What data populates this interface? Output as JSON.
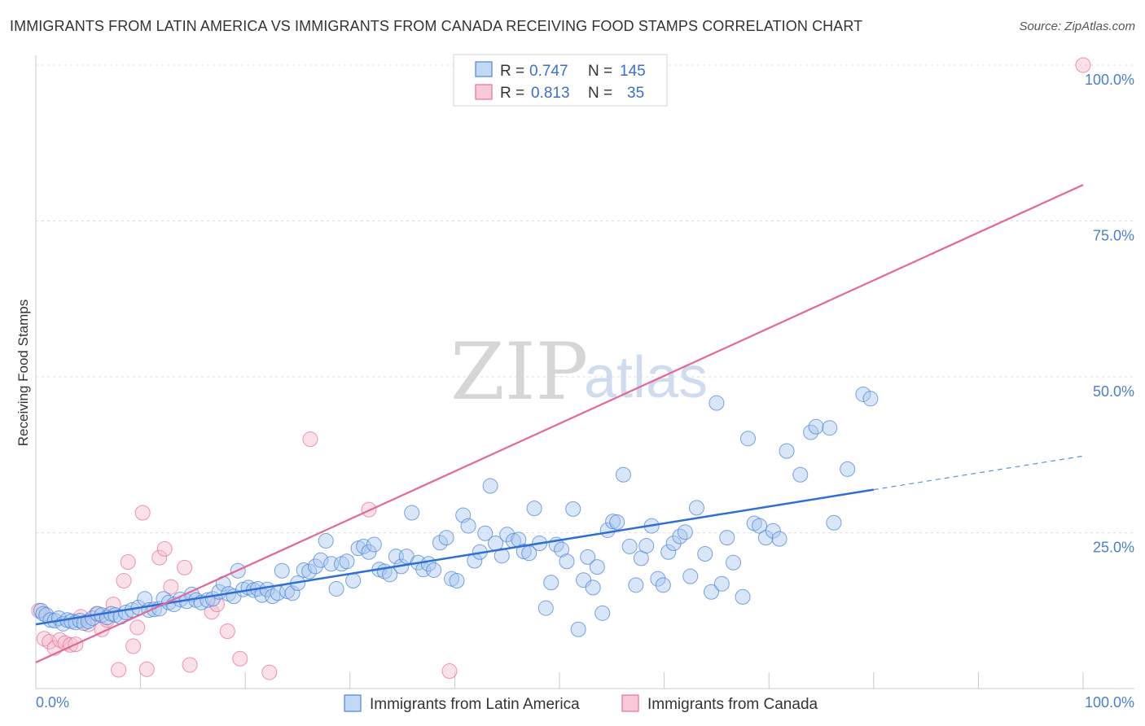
{
  "title": "IMMIGRANTS FROM LATIN AMERICA VS IMMIGRANTS FROM CANADA RECEIVING FOOD STAMPS CORRELATION CHART",
  "source": "Source: ZipAtlas.com",
  "watermark": {
    "zip": "ZIP",
    "atlas": "atlas"
  },
  "colors": {
    "blue": "#4a86d8",
    "blue_fill": "#aac8f0",
    "pink": "#e8709a",
    "pink_fill": "#f5bccf",
    "tick": "#4a7fd0",
    "grid": "#d9d9d9"
  },
  "chart_data": {
    "type": "scatter",
    "title": "IMMIGRANTS FROM LATIN AMERICA VS IMMIGRANTS FROM CANADA RECEIVING FOOD STAMPS CORRELATION CHART",
    "xlabel": "",
    "ylabel": "Receiving Food Stamps",
    "xlim": [
      0,
      100
    ],
    "ylim": [
      0,
      100
    ],
    "x_ticks": [
      "0.0%",
      "100.0%"
    ],
    "y_ticks": [
      {
        "value": 25,
        "label": "25.0%"
      },
      {
        "value": 50,
        "label": "50.0%"
      },
      {
        "value": 75,
        "label": "75.0%"
      },
      {
        "value": 100,
        "label": "100.0%"
      }
    ],
    "grid": true,
    "legend_position": "top-center",
    "stats": [
      {
        "r_label": "R =",
        "r": "0.747",
        "n_label": "N =",
        "n": "145"
      },
      {
        "r_label": "R =",
        "r": "0.813",
        "n_label": "N =",
        "n": "35"
      }
    ],
    "series": [
      {
        "name": "Immigrants from Latin America",
        "color": "#4a86d8",
        "trend": {
          "x0": 0,
          "y0": 10.3,
          "x1": 80,
          "y1": 31.9,
          "dash_to_x": 100,
          "dash_to_y": 37.3
        },
        "points": [
          [
            0.5,
            12.5
          ],
          [
            0.7,
            12.0
          ],
          [
            1.0,
            11.8
          ],
          [
            1.4,
            11.0
          ],
          [
            1.8,
            10.9
          ],
          [
            2.2,
            11.3
          ],
          [
            2.6,
            10.4
          ],
          [
            3.0,
            11.0
          ],
          [
            3.4,
            10.8
          ],
          [
            3.8,
            10.6
          ],
          [
            4.2,
            10.9
          ],
          [
            4.6,
            10.5
          ],
          [
            5.0,
            10.8
          ],
          [
            5.4,
            11.3
          ],
          [
            5.9,
            12.0
          ],
          [
            6.3,
            11.8
          ],
          [
            6.8,
            11.4
          ],
          [
            7.2,
            12.0
          ],
          [
            7.6,
            11.8
          ],
          [
            8.1,
            11.5
          ],
          [
            8.6,
            12.2
          ],
          [
            9.2,
            12.6
          ],
          [
            9.8,
            13.0
          ],
          [
            10.4,
            14.4
          ],
          [
            10.8,
            12.6
          ],
          [
            11.3,
            12.7
          ],
          [
            11.8,
            12.8
          ],
          [
            12.2,
            14.4
          ],
          [
            12.7,
            13.8
          ],
          [
            13.2,
            13.5
          ],
          [
            13.8,
            14.3
          ],
          [
            14.4,
            14.0
          ],
          [
            14.9,
            15.1
          ],
          [
            15.3,
            14.2
          ],
          [
            15.8,
            13.8
          ],
          [
            16.4,
            14.2
          ],
          [
            16.9,
            14.4
          ],
          [
            17.5,
            15.5
          ],
          [
            17.9,
            16.8
          ],
          [
            18.4,
            15.2
          ],
          [
            18.9,
            14.8
          ],
          [
            19.3,
            18.9
          ],
          [
            19.8,
            15.9
          ],
          [
            20.3,
            16.2
          ],
          [
            20.8,
            15.8
          ],
          [
            21.2,
            16.0
          ],
          [
            21.6,
            15.0
          ],
          [
            22.1,
            15.9
          ],
          [
            22.6,
            14.8
          ],
          [
            23.1,
            15.3
          ],
          [
            23.5,
            18.9
          ],
          [
            24.0,
            15.6
          ],
          [
            24.5,
            15.3
          ],
          [
            25.0,
            16.9
          ],
          [
            25.6,
            19.0
          ],
          [
            26.1,
            18.8
          ],
          [
            26.7,
            19.6
          ],
          [
            27.2,
            20.6
          ],
          [
            27.7,
            23.7
          ],
          [
            28.2,
            20.0
          ],
          [
            28.7,
            16.0
          ],
          [
            29.2,
            20.0
          ],
          [
            29.7,
            20.4
          ],
          [
            30.3,
            17.3
          ],
          [
            30.8,
            22.5
          ],
          [
            31.3,
            22.8
          ],
          [
            31.8,
            21.9
          ],
          [
            32.3,
            23.1
          ],
          [
            32.8,
            19.1
          ],
          [
            33.3,
            18.8
          ],
          [
            33.8,
            18.3
          ],
          [
            34.4,
            21.2
          ],
          [
            34.9,
            19.6
          ],
          [
            35.4,
            21.2
          ],
          [
            35.9,
            28.2
          ],
          [
            36.5,
            20.2
          ],
          [
            37.0,
            19.1
          ],
          [
            37.5,
            20.0
          ],
          [
            38.0,
            19.0
          ],
          [
            38.6,
            23.4
          ],
          [
            39.2,
            24.2
          ],
          [
            39.7,
            17.6
          ],
          [
            40.2,
            17.3
          ],
          [
            40.8,
            27.8
          ],
          [
            41.3,
            26.1
          ],
          [
            41.9,
            20.5
          ],
          [
            42.4,
            21.9
          ],
          [
            42.9,
            24.9
          ],
          [
            43.4,
            32.5
          ],
          [
            43.9,
            23.3
          ],
          [
            44.5,
            21.3
          ],
          [
            45.0,
            24.7
          ],
          [
            45.6,
            23.7
          ],
          [
            46.1,
            23.9
          ],
          [
            46.6,
            22.0
          ],
          [
            47.1,
            21.7
          ],
          [
            47.6,
            28.9
          ],
          [
            48.1,
            23.3
          ],
          [
            48.7,
            12.9
          ],
          [
            49.2,
            17.0
          ],
          [
            49.7,
            23.1
          ],
          [
            50.2,
            22.3
          ],
          [
            50.7,
            20.4
          ],
          [
            51.3,
            28.8
          ],
          [
            51.8,
            9.5
          ],
          [
            52.3,
            17.4
          ],
          [
            52.7,
            21.1
          ],
          [
            53.2,
            16.2
          ],
          [
            53.6,
            19.5
          ],
          [
            54.1,
            12.1
          ],
          [
            54.6,
            25.4
          ],
          [
            55.1,
            26.8
          ],
          [
            55.5,
            26.7
          ],
          [
            56.1,
            34.3
          ],
          [
            56.7,
            22.8
          ],
          [
            57.3,
            16.6
          ],
          [
            57.8,
            20.9
          ],
          [
            58.3,
            22.9
          ],
          [
            58.8,
            26.1
          ],
          [
            59.4,
            17.6
          ],
          [
            59.9,
            16.6
          ],
          [
            60.4,
            21.9
          ],
          [
            60.9,
            23.3
          ],
          [
            61.5,
            24.4
          ],
          [
            62.0,
            25.1
          ],
          [
            62.5,
            18.0
          ],
          [
            63.1,
            29.0
          ],
          [
            63.9,
            21.6
          ],
          [
            64.5,
            15.5
          ],
          [
            65.0,
            45.8
          ],
          [
            65.5,
            16.8
          ],
          [
            66.0,
            24.2
          ],
          [
            66.6,
            20.2
          ],
          [
            67.5,
            14.7
          ],
          [
            68.0,
            40.1
          ],
          [
            68.6,
            26.5
          ],
          [
            69.1,
            26.1
          ],
          [
            69.7,
            24.2
          ],
          [
            70.4,
            25.3
          ],
          [
            71.0,
            24.0
          ],
          [
            71.7,
            38.1
          ],
          [
            73.0,
            34.3
          ],
          [
            74.0,
            41.1
          ],
          [
            74.5,
            42.0
          ],
          [
            75.8,
            41.8
          ],
          [
            76.2,
            26.6
          ],
          [
            77.5,
            35.2
          ],
          [
            79.0,
            47.2
          ],
          [
            79.7,
            46.5
          ]
        ]
      },
      {
        "name": "Immigrants from Canada",
        "color": "#e8709a",
        "trend": {
          "x0": 0,
          "y0": 4.2,
          "x1": 100,
          "y1": 80.8
        },
        "points": [
          [
            0.3,
            12.5
          ],
          [
            0.8,
            8.0
          ],
          [
            1.3,
            7.5
          ],
          [
            1.8,
            6.5
          ],
          [
            2.3,
            7.8
          ],
          [
            2.8,
            7.3
          ],
          [
            3.3,
            7.0
          ],
          [
            3.8,
            7.1
          ],
          [
            4.3,
            11.5
          ],
          [
            5.0,
            10.3
          ],
          [
            5.8,
            12.0
          ],
          [
            6.3,
            9.5
          ],
          [
            6.8,
            11.0
          ],
          [
            7.4,
            13.5
          ],
          [
            7.9,
            3.0
          ],
          [
            8.4,
            17.3
          ],
          [
            8.8,
            20.3
          ],
          [
            9.3,
            6.8
          ],
          [
            9.7,
            9.8
          ],
          [
            10.2,
            28.2
          ],
          [
            10.6,
            3.1
          ],
          [
            11.8,
            21.0
          ],
          [
            12.3,
            22.4
          ],
          [
            12.9,
            16.3
          ],
          [
            14.2,
            19.4
          ],
          [
            14.7,
            3.8
          ],
          [
            16.8,
            12.3
          ],
          [
            17.3,
            13.5
          ],
          [
            18.3,
            9.2
          ],
          [
            19.5,
            4.8
          ],
          [
            22.3,
            2.6
          ],
          [
            26.2,
            40.0
          ],
          [
            31.8,
            28.7
          ],
          [
            39.5,
            2.8
          ],
          [
            100.0,
            100.0
          ]
        ]
      }
    ]
  },
  "legend_bottom": [
    {
      "label": "Immigrants from Latin America"
    },
    {
      "label": "Immigrants from Canada"
    }
  ]
}
